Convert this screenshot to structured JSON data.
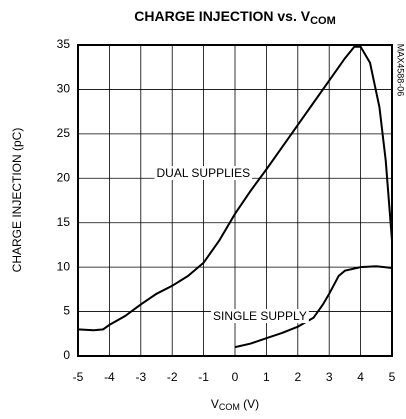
{
  "chart_data": {
    "type": "line",
    "title": [
      "CHARGE INJECTION vs. V",
      "COM"
    ],
    "x_label": [
      "V",
      "COM",
      " (V)"
    ],
    "y_label": "CHARGE INJECTION (pC)",
    "side_label": "MAX4588-06",
    "xlim": [
      -5,
      5
    ],
    "ylim": [
      0,
      35
    ],
    "xticks": [
      -5,
      -4,
      -3,
      -2,
      -1,
      0,
      1,
      2,
      3,
      4,
      5
    ],
    "yticks": [
      0,
      5,
      10,
      15,
      20,
      25,
      30,
      35
    ],
    "grid": true,
    "series": [
      {
        "name": "DUAL SUPPLIES",
        "color": "#000000",
        "x": [
          -5,
          -4.5,
          -4.2,
          -4,
          -3.5,
          -3,
          -2.5,
          -2,
          -1.5,
          -1,
          -0.5,
          0,
          0.5,
          1,
          1.5,
          2,
          2.5,
          3,
          3.5,
          3.8,
          4,
          4.3,
          4.6,
          4.8,
          5
        ],
        "values": [
          3,
          2.9,
          3,
          3.5,
          4.5,
          5.8,
          7,
          7.9,
          9,
          10.5,
          13,
          16,
          18.6,
          21,
          23.5,
          26,
          28.5,
          31,
          33.5,
          34.8,
          34.8,
          33,
          28,
          22,
          13
        ]
      },
      {
        "name": "SINGLE SUPPLY",
        "color": "#000000",
        "x": [
          0,
          0.5,
          1,
          1.5,
          2,
          2.5,
          2.8,
          3,
          3.3,
          3.5,
          4,
          4.5,
          5
        ],
        "values": [
          1,
          1.4,
          2,
          2.6,
          3.3,
          4.3,
          5.8,
          7,
          9,
          9.6,
          10,
          10.1,
          9.9
        ]
      }
    ]
  }
}
